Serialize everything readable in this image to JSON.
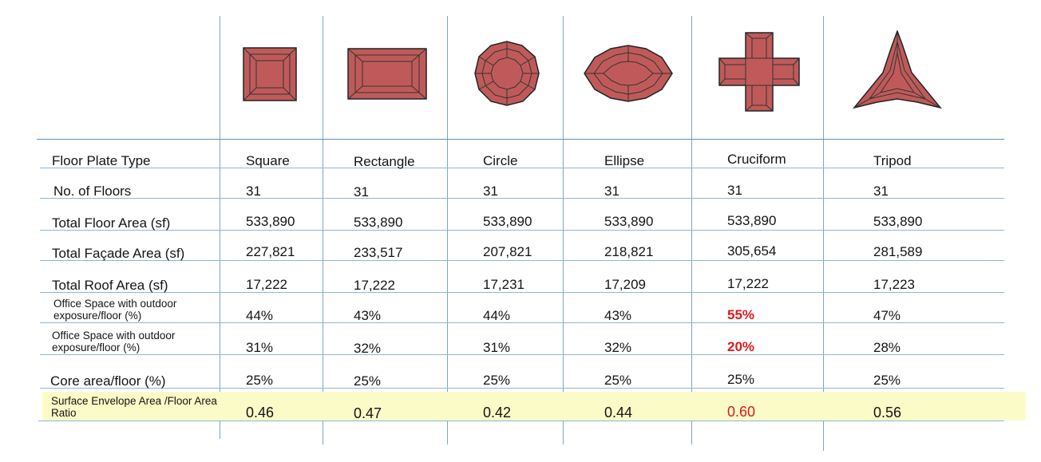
{
  "accent_color": "#e0191b",
  "highlight_color": "#fbfbc7",
  "shape_fill": "#c05a5a",
  "columns": [
    {
      "name": "Square",
      "icon": "square-floorplate-icon"
    },
    {
      "name": "Rectangle",
      "icon": "rectangle-floorplate-icon"
    },
    {
      "name": "Circle",
      "icon": "circle-floorplate-icon"
    },
    {
      "name": "Ellipse",
      "icon": "ellipse-floorplate-icon"
    },
    {
      "name": "Cruciform",
      "icon": "cruciform-floorplate-icon"
    },
    {
      "name": "Tripod",
      "icon": "tripod-floorplate-icon"
    }
  ],
  "rows": [
    {
      "label": "Floor Plate Type",
      "values": [
        "Square",
        "Rectangle",
        "Circle",
        "Ellipse",
        "Cruciform",
        "Tripod"
      ]
    },
    {
      "label": "No. of Floors",
      "values": [
        "31",
        "31",
        "31",
        "31",
        "31",
        "31"
      ]
    },
    {
      "label": "Total Floor Area (sf)",
      "values": [
        "533,890",
        "533,890",
        "533,890",
        "533,890",
        "533,890",
        "533,890"
      ]
    },
    {
      "label": "Total Façade Area (sf)",
      "values": [
        "227,821",
        "233,517",
        "207,821",
        "218,821",
        "305,654",
        "281,589"
      ]
    },
    {
      "label": "Total Roof Area (sf)",
      "values": [
        "17,222",
        "17,222",
        "17,231",
        "17,209",
        "17,222",
        "17,223"
      ]
    },
    {
      "label": "Office Space with outdoor exposure/floor (%)",
      "values": [
        "44%",
        "43%",
        "44%",
        "43%",
        "55%",
        "47%"
      ]
    },
    {
      "label": "Office Space with outdoor exposure/floor (%)",
      "values": [
        "31%",
        "32%",
        "31%",
        "32%",
        "20%",
        "28%"
      ]
    },
    {
      "label": "Core area/floor (%)",
      "values": [
        "25%",
        "25%",
        "25%",
        "25%",
        "25%",
        "25%"
      ]
    },
    {
      "label": "Surface Envelope Area /Floor Area Ratio",
      "values": [
        "0.46",
        "0.47",
        "0.42",
        "0.44",
        "0.60",
        "0.56"
      ]
    }
  ]
}
